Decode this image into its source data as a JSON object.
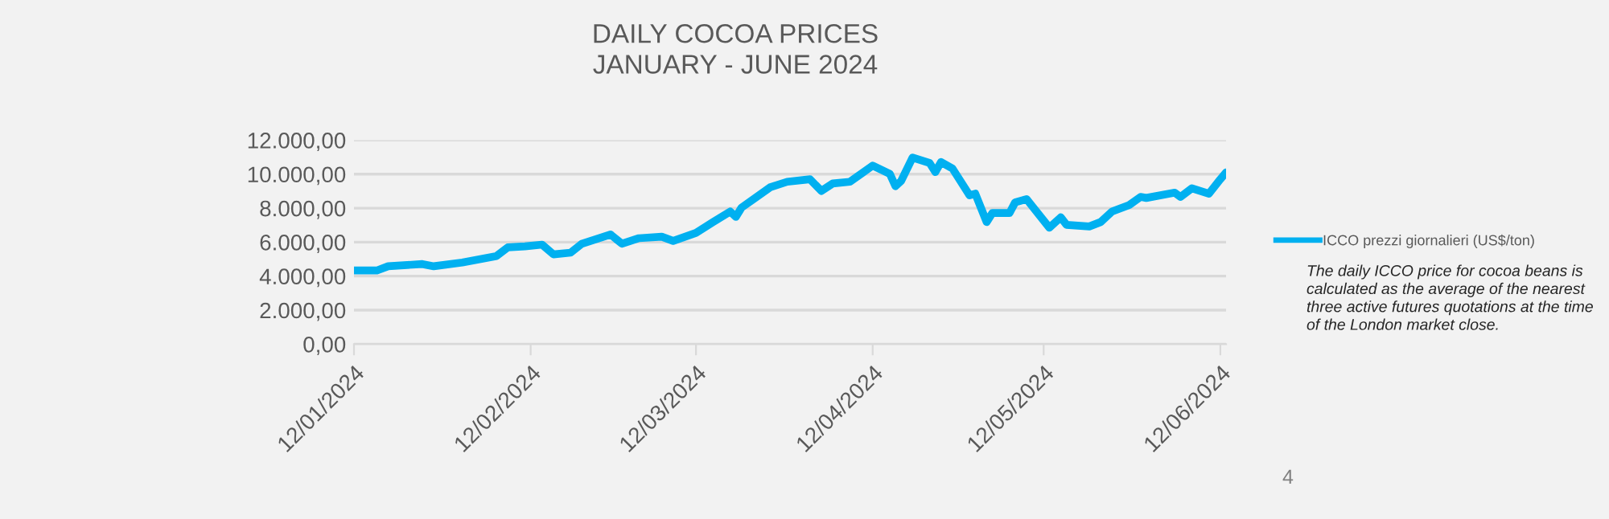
{
  "chart_data": {
    "type": "line",
    "title": "DAILY COCOA PRICES\nJANUARY - JUNE 2024",
    "x": [
      "2024-01-12",
      "2024-01-16",
      "2024-01-18",
      "2024-01-24",
      "2024-01-26",
      "2024-01-31",
      "2024-02-06",
      "2024-02-08",
      "2024-02-11",
      "2024-02-14",
      "2024-02-16",
      "2024-02-19",
      "2024-02-21",
      "2024-02-26",
      "2024-02-28",
      "2024-03-02",
      "2024-03-06",
      "2024-03-08",
      "2024-03-12",
      "2024-03-15",
      "2024-03-18",
      "2024-03-19",
      "2024-03-20",
      "2024-03-25",
      "2024-03-28",
      "2024-04-01",
      "2024-04-03",
      "2024-04-05",
      "2024-04-08",
      "2024-04-10",
      "2024-04-12",
      "2024-04-15",
      "2024-04-16",
      "2024-04-17",
      "2024-04-19",
      "2024-04-22",
      "2024-04-23",
      "2024-04-24",
      "2024-04-26",
      "2024-04-29",
      "2024-04-30",
      "2024-05-02",
      "2024-05-03",
      "2024-05-06",
      "2024-05-07",
      "2024-05-09",
      "2024-05-13",
      "2024-05-15",
      "2024-05-16",
      "2024-05-20",
      "2024-05-22",
      "2024-05-24",
      "2024-05-27",
      "2024-05-29",
      "2024-05-30",
      "2024-06-04",
      "2024-06-05",
      "2024-06-07",
      "2024-06-10",
      "2024-06-12",
      "2024-06-13"
    ],
    "series": [
      {
        "name": "ICCO prezzi giornalieri (US$/ton)",
        "color": "#00b0f0",
        "values": [
          4330,
          4330,
          4580,
          4710,
          4580,
          4800,
          5180,
          5690,
          5750,
          5850,
          5280,
          5380,
          5910,
          6450,
          5910,
          6230,
          6320,
          6070,
          6540,
          7180,
          7800,
          7490,
          8030,
          9220,
          9550,
          9700,
          9010,
          9450,
          9550,
          10020,
          10500,
          10020,
          9290,
          9600,
          10970,
          10650,
          10120,
          10710,
          10330,
          8750,
          8850,
          7180,
          7710,
          7710,
          8340,
          8530,
          6850,
          7460,
          7020,
          6920,
          7180,
          7800,
          8180,
          8660,
          8600,
          8910,
          8660,
          9170,
          8850,
          9700,
          10100
        ]
      }
    ],
    "xlim": [
      "2024-01-12",
      "2024-06-13"
    ],
    "xticks": [
      {
        "value": "2024-01-12",
        "label": "12/01/2024"
      },
      {
        "value": "2024-02-12",
        "label": "12/02/2024"
      },
      {
        "value": "2024-03-12",
        "label": "12/03/2024"
      },
      {
        "value": "2024-04-12",
        "label": "12/04/2024"
      },
      {
        "value": "2024-05-12",
        "label": "12/05/2024"
      },
      {
        "value": "2024-06-12",
        "label": "12/06/2024"
      }
    ],
    "ylim": [
      0,
      12000
    ],
    "yticks": [
      {
        "value": 0,
        "label": "0,00"
      },
      {
        "value": 2000,
        "label": "2.000,00"
      },
      {
        "value": 4000,
        "label": "4.000,00"
      },
      {
        "value": 6000,
        "label": "6.000,00"
      },
      {
        "value": 8000,
        "label": "8.000,00"
      },
      {
        "value": 10000,
        "label": "10.000,00"
      },
      {
        "value": 12000,
        "label": "12.000,00"
      }
    ],
    "grid": "y",
    "legend": "right",
    "marker": "none",
    "line_style": "solid",
    "annotations": [
      "The daily ICCO price for cocoa beans is calculated as the average of the nearest three active futures quotations at the time of the London market close.",
      "4"
    ]
  }
}
